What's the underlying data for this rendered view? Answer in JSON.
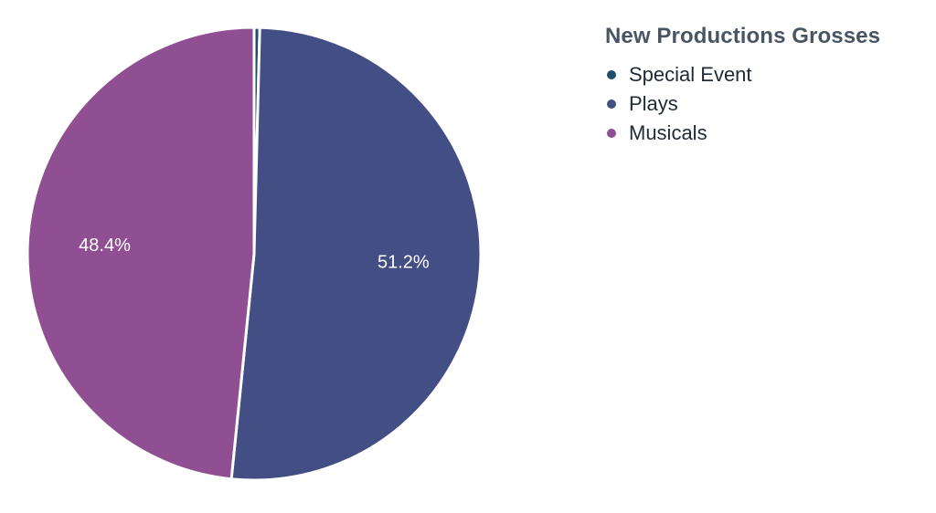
{
  "chart_data": {
    "type": "pie",
    "title": "New Productions Grosses",
    "legend_position": "top-right",
    "slices": [
      {
        "label": "Special Event",
        "value": 0.4,
        "color": "#1d4e6b",
        "data_label": ""
      },
      {
        "label": "Plays",
        "value": 51.2,
        "color": "#434e85",
        "data_label": "51.2%"
      },
      {
        "label": "Musicals",
        "value": 48.4,
        "color": "#8f4f92",
        "data_label": "48.4%"
      }
    ]
  }
}
